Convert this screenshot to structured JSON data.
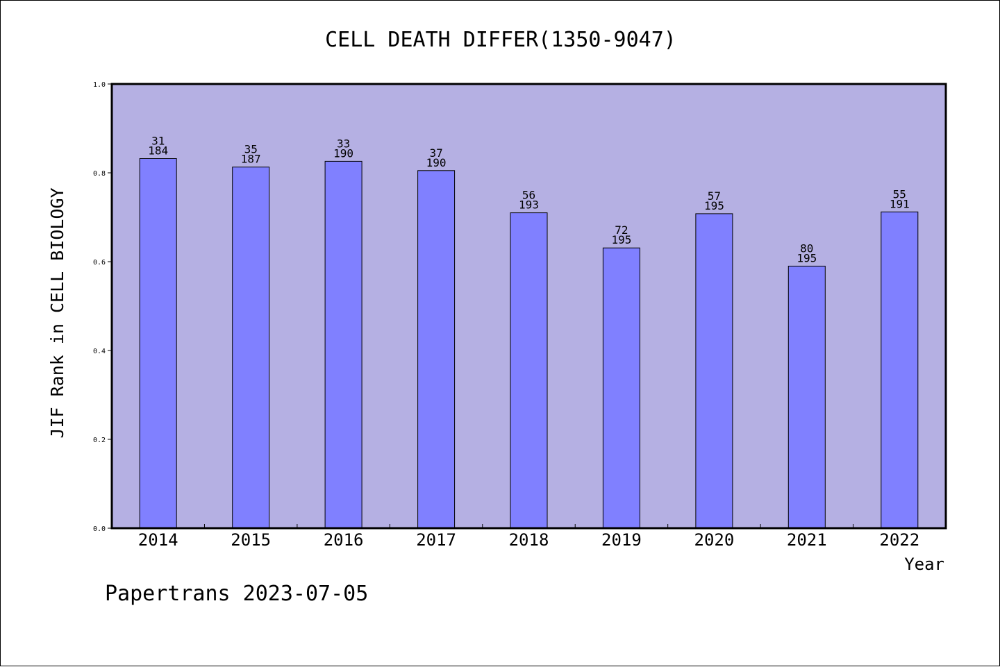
{
  "chart_data": {
    "type": "bar",
    "title": "CELL DEATH DIFFER(1350-9047)",
    "xlabel": "Year",
    "ylabel": "JIF Rank in CELL BIOLOGY",
    "ylim": [
      0,
      1.0
    ],
    "yticks": [
      "0.0",
      "0.2",
      "0.4",
      "0.6",
      "0.8",
      "1.0"
    ],
    "grid": false,
    "categories": [
      "2014",
      "2015",
      "2016",
      "2017",
      "2018",
      "2019",
      "2020",
      "2021",
      "2022"
    ],
    "values": [
      0.832,
      0.813,
      0.826,
      0.805,
      0.71,
      0.631,
      0.708,
      0.59,
      0.712
    ],
    "rank": [
      "31",
      "35",
      "33",
      "37",
      "56",
      "72",
      "57",
      "80",
      "55"
    ],
    "total": [
      "184",
      "187",
      "190",
      "190",
      "193",
      "195",
      "195",
      "195",
      "191"
    ],
    "colors": {
      "bar": "#8080ff",
      "plot_bg": "#b5b0e3",
      "axis": "#000000"
    }
  },
  "footer": "Papertrans 2023-07-05"
}
